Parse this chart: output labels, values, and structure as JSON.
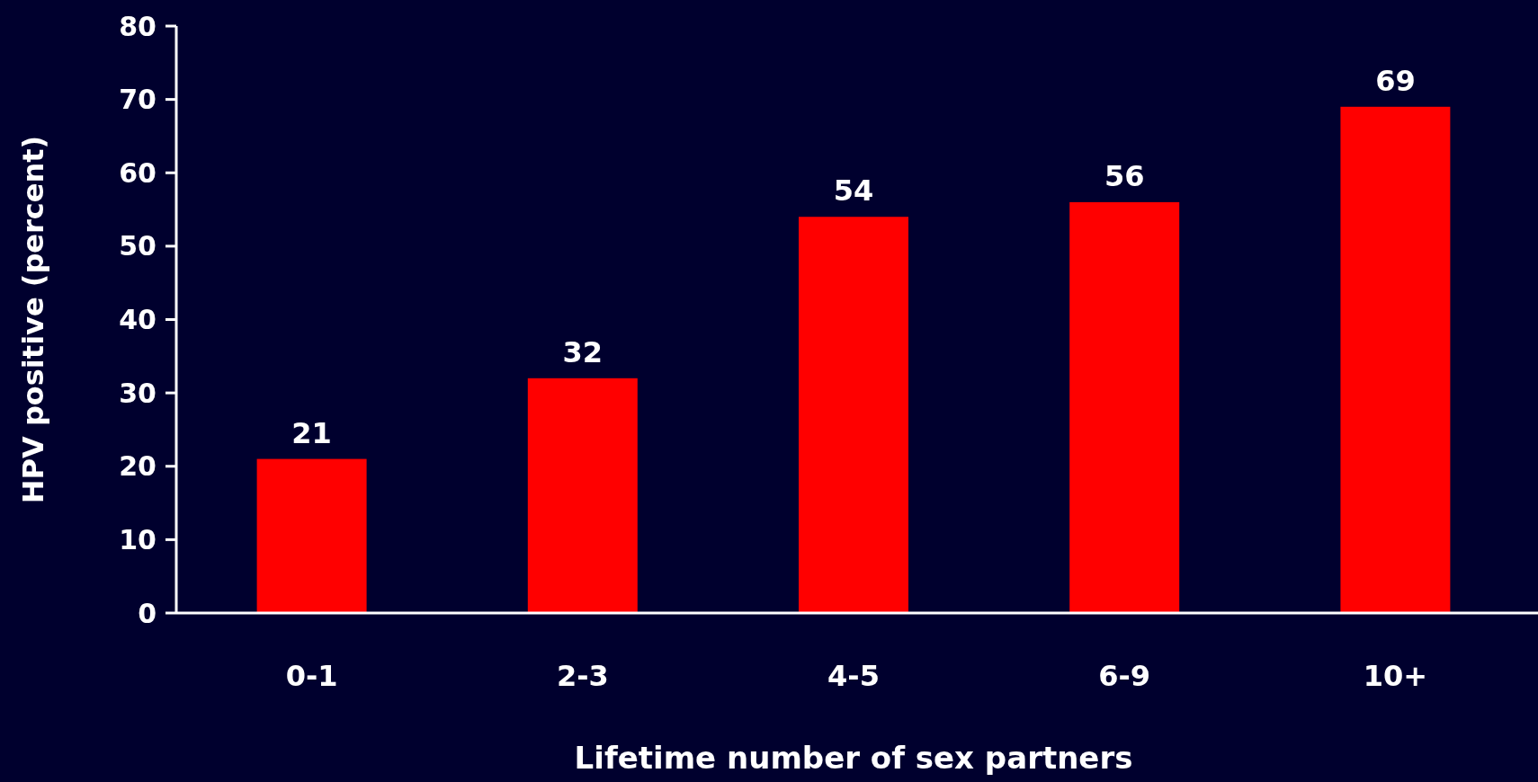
{
  "chart_data": {
    "type": "bar",
    "xlabel": "Lifetime number of sex partners",
    "ylabel": "HPV positive (percent)",
    "categories": [
      "0-1",
      "2-3",
      "4-5",
      "6-9",
      "10+"
    ],
    "values": [
      21,
      32,
      54,
      56,
      69
    ],
    "color": "#ff0000",
    "ylim": [
      0,
      80
    ],
    "yticks": [
      0,
      10,
      20,
      30,
      40,
      50,
      60,
      70,
      80
    ],
    "data_labels": true
  }
}
